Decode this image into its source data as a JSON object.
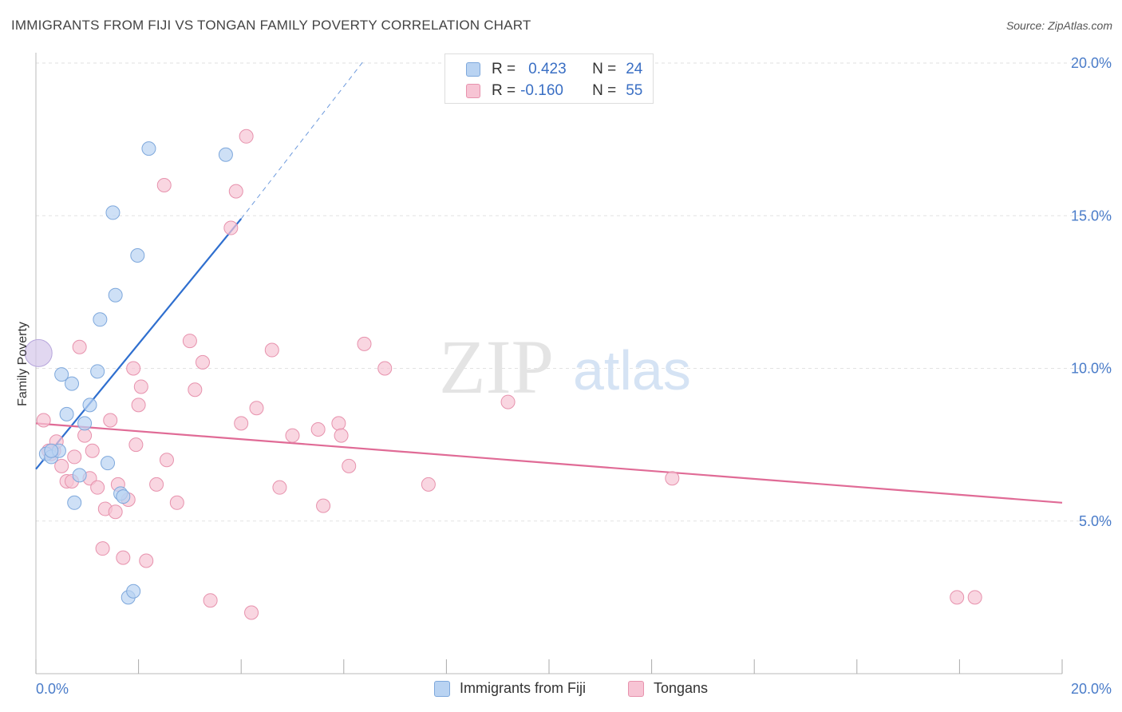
{
  "header": {
    "title": "IMMIGRANTS FROM FIJI VS TONGAN FAMILY POVERTY CORRELATION CHART",
    "source": "Source: ZipAtlas.com"
  },
  "watermark": {
    "zip": "ZIP",
    "atlas": "atlas"
  },
  "legend": {
    "fiji": {
      "r_label": "R =",
      "r_value": "0.423",
      "n_label": "N =",
      "n_value": "24"
    },
    "tongan": {
      "r_label": "R =",
      "r_value": "-0.160",
      "n_label": "N =",
      "n_value": "55"
    }
  },
  "bottom_legend": {
    "fiji": "Immigrants from Fiji",
    "tongan": "Tongans"
  },
  "colors": {
    "fiji_fill": "#b9d3f2",
    "fiji_stroke": "#7ea8dc",
    "fiji_line": "#2f6fcf",
    "tongan_fill": "#f7c4d4",
    "tongan_stroke": "#e792ad",
    "tongan_line": "#e06b96",
    "tick_label": "#4a7cc9",
    "grid": "#e2e2e2"
  },
  "chart_data": {
    "type": "scatter",
    "title": "IMMIGRANTS FROM FIJI VS TONGAN FAMILY POVERTY CORRELATION CHART",
    "xlabel": "",
    "ylabel": "Family Poverty",
    "xlim": [
      0,
      20
    ],
    "ylim": [
      0,
      20
    ],
    "x_tick_labels": [
      "0.0%",
      "20.0%"
    ],
    "y_ticks": [
      5,
      10,
      15,
      20
    ],
    "y_tick_labels": [
      "5.0%",
      "10.0%",
      "15.0%",
      "20.0%"
    ],
    "grid": true,
    "series": [
      {
        "name": "Immigrants from Fiji",
        "color": "fiji",
        "points": [
          [
            0.05,
            10.5
          ],
          [
            0.2,
            7.2
          ],
          [
            0.3,
            7.1
          ],
          [
            0.45,
            7.3
          ],
          [
            0.5,
            9.8
          ],
          [
            0.6,
            8.5
          ],
          [
            0.7,
            9.5
          ],
          [
            0.75,
            5.6
          ],
          [
            0.85,
            6.5
          ],
          [
            0.95,
            8.2
          ],
          [
            1.05,
            8.8
          ],
          [
            1.2,
            9.9
          ],
          [
            1.25,
            11.6
          ],
          [
            1.4,
            6.9
          ],
          [
            1.5,
            15.1
          ],
          [
            1.55,
            12.4
          ],
          [
            1.65,
            5.9
          ],
          [
            1.7,
            5.8
          ],
          [
            1.8,
            2.5
          ],
          [
            1.9,
            2.7
          ],
          [
            1.98,
            13.7
          ],
          [
            2.2,
            17.2
          ],
          [
            3.7,
            17.0
          ],
          [
            0.3,
            7.3
          ]
        ],
        "trend": {
          "x": [
            0,
            4.0
          ],
          "y": [
            6.7,
            14.9
          ],
          "dashed_to": [
            6.4,
            20.1
          ]
        }
      },
      {
        "name": "Tongans",
        "color": "tongan",
        "points": [
          [
            0.15,
            8.3
          ],
          [
            0.35,
            7.3
          ],
          [
            0.4,
            7.6
          ],
          [
            0.5,
            6.8
          ],
          [
            0.6,
            6.3
          ],
          [
            0.7,
            6.3
          ],
          [
            0.75,
            7.1
          ],
          [
            0.85,
            10.7
          ],
          [
            0.95,
            7.8
          ],
          [
            1.05,
            6.4
          ],
          [
            1.1,
            7.3
          ],
          [
            1.2,
            6.1
          ],
          [
            1.3,
            4.1
          ],
          [
            1.35,
            5.4
          ],
          [
            1.45,
            8.3
          ],
          [
            1.55,
            5.3
          ],
          [
            1.6,
            6.2
          ],
          [
            1.7,
            3.8
          ],
          [
            1.8,
            5.7
          ],
          [
            1.9,
            10.0
          ],
          [
            1.95,
            7.5
          ],
          [
            2.0,
            8.8
          ],
          [
            2.05,
            9.4
          ],
          [
            2.15,
            3.7
          ],
          [
            2.35,
            6.2
          ],
          [
            2.5,
            16.0
          ],
          [
            2.55,
            7.0
          ],
          [
            2.75,
            5.6
          ],
          [
            3.0,
            10.9
          ],
          [
            3.1,
            9.3
          ],
          [
            3.25,
            10.2
          ],
          [
            3.4,
            2.4
          ],
          [
            3.8,
            14.6
          ],
          [
            3.9,
            15.8
          ],
          [
            4.1,
            17.6
          ],
          [
            4.0,
            8.2
          ],
          [
            4.2,
            2.0
          ],
          [
            4.3,
            8.7
          ],
          [
            4.6,
            10.6
          ],
          [
            4.75,
            6.1
          ],
          [
            5.0,
            7.8
          ],
          [
            5.5,
            8.0
          ],
          [
            5.6,
            5.5
          ],
          [
            5.9,
            8.2
          ],
          [
            5.95,
            7.8
          ],
          [
            6.1,
            6.8
          ],
          [
            6.4,
            10.8
          ],
          [
            6.8,
            10.0
          ],
          [
            7.65,
            6.2
          ],
          [
            9.2,
            8.9
          ],
          [
            12.4,
            6.4
          ],
          [
            17.95,
            2.5
          ],
          [
            18.3,
            2.5
          ],
          [
            0.3,
            7.2
          ],
          [
            0.25,
            7.3
          ]
        ],
        "trend": {
          "x": [
            0,
            20
          ],
          "y": [
            8.2,
            5.6
          ]
        }
      }
    ]
  }
}
